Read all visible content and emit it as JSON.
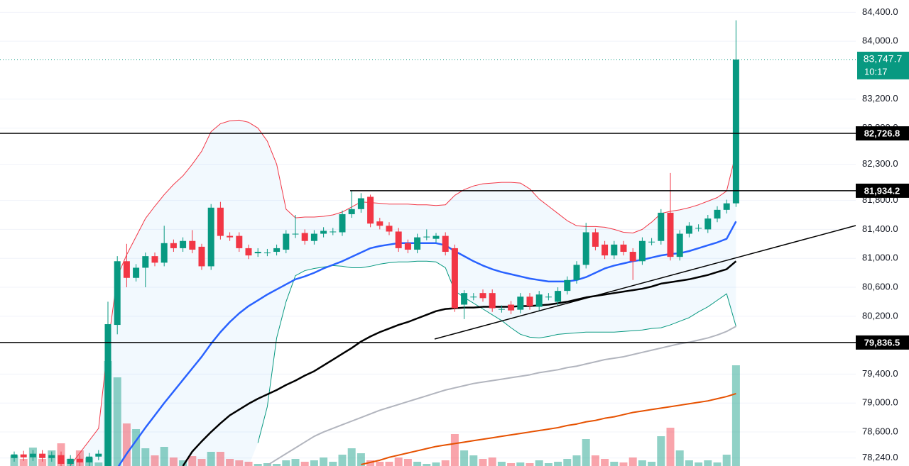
{
  "chart_data": {
    "type": "candlestick",
    "candles": {
      "open": [
        78240,
        78290,
        78250,
        78300,
        78240,
        78280,
        78160,
        78230,
        78180,
        78260,
        78100,
        80080,
        80960,
        80730,
        80870,
        81030,
        80940,
        81210,
        81140,
        81240,
        81160,
        80890,
        81700,
        81310,
        81310,
        81140,
        81070,
        81080,
        81090,
        81120,
        81330,
        81350,
        81240,
        81340,
        81370,
        81360,
        81610,
        81680,
        81850,
        81510,
        81450,
        81370,
        81210,
        81120,
        81300,
        81270,
        81310,
        81140,
        80360,
        80470,
        80520,
        80520,
        80300,
        80360,
        80290,
        80470,
        80330,
        80470,
        80400,
        80550,
        80700,
        80910,
        81360,
        81190,
        81040,
        81190,
        81090,
        80960,
        81230,
        81240,
        81630,
        81020,
        81340,
        81420,
        81400,
        81550,
        81670,
        81760
      ],
      "high": [
        78330,
        78340,
        78350,
        78350,
        78330,
        78330,
        78280,
        78280,
        78310,
        78350,
        80400,
        81030,
        81200,
        80920,
        81080,
        81080,
        81450,
        81260,
        81290,
        81390,
        81200,
        81750,
        81780,
        81360,
        81360,
        81190,
        81140,
        81130,
        81190,
        81390,
        81600,
        81400,
        81390,
        81430,
        81420,
        81660,
        81930,
        81900,
        81880,
        81560,
        81500,
        81420,
        81260,
        81340,
        81400,
        81350,
        81360,
        81190,
        80560,
        80520,
        80570,
        80570,
        80350,
        80410,
        80520,
        80520,
        80550,
        80520,
        80600,
        80750,
        80960,
        81490,
        81410,
        81240,
        81240,
        81240,
        81140,
        81290,
        81280,
        81680,
        82180,
        81390,
        81500,
        81470,
        81600,
        81720,
        81810,
        84290
      ],
      "low": [
        78190,
        78200,
        78200,
        78190,
        78190,
        78110,
        78110,
        78130,
        78130,
        78210,
        78050,
        79950,
        80600,
        80680,
        80600,
        80890,
        80890,
        81090,
        81090,
        81070,
        80840,
        80840,
        81260,
        81240,
        81090,
        80990,
        81020,
        81030,
        81040,
        81070,
        81280,
        81190,
        81190,
        81290,
        81320,
        81310,
        81560,
        81630,
        81430,
        81400,
        81320,
        81090,
        81070,
        81070,
        81250,
        81220,
        81040,
        80260,
        80160,
        80420,
        80400,
        80260,
        80250,
        80230,
        80240,
        80290,
        80280,
        80420,
        80350,
        80500,
        80650,
        80860,
        81110,
        80990,
        80990,
        81040,
        80700,
        80910,
        81180,
        81190,
        80970,
        80970,
        81290,
        81370,
        81350,
        81500,
        81620,
        81710
      ],
      "close": [
        78290,
        78250,
        78300,
        78240,
        78280,
        78160,
        78230,
        78180,
        78260,
        78300,
        80090,
        80960,
        80730,
        80870,
        81030,
        80940,
        81210,
        81140,
        81240,
        81120,
        80890,
        81700,
        81310,
        81290,
        81140,
        81040,
        81090,
        81080,
        81140,
        81340,
        81340,
        81240,
        81340,
        81380,
        81370,
        81610,
        81680,
        81830,
        81480,
        81450,
        81370,
        81140,
        81120,
        81290,
        81300,
        81310,
        81090,
        80310,
        80520,
        80470,
        80450,
        80310,
        80300,
        80280,
        80470,
        80340,
        80500,
        80470,
        80550,
        80700,
        80910,
        81360,
        81160,
        81040,
        81190,
        81090,
        80960,
        81240,
        81230,
        81630,
        81020,
        81340,
        81450,
        81420,
        81550,
        81670,
        81760,
        83747.7
      ]
    },
    "up_color": "#089981",
    "down_color": "#f23645",
    "volume": [
      15,
      10,
      26,
      10,
      22,
      32,
      10,
      22,
      12,
      5,
      148,
      125,
      60,
      52,
      25,
      15,
      27,
      12,
      8,
      14,
      10,
      20,
      20,
      10,
      8,
      6,
      3,
      4,
      3,
      8,
      10,
      6,
      8,
      12,
      6,
      16,
      25,
      18,
      8,
      6,
      6,
      12,
      10,
      6,
      3,
      5,
      8,
      45,
      22,
      15,
      10,
      12,
      6,
      4,
      5,
      4,
      8,
      4,
      6,
      10,
      15,
      38,
      15,
      10,
      6,
      5,
      12,
      8,
      6,
      42,
      54,
      22,
      8,
      5,
      8,
      5,
      16,
      142
    ],
    "volume_lim": [
      0,
      657
    ],
    "band_fill": "rgba(33,150,243,0.06)",
    "series": [
      {
        "color": "#f23645",
        "width": 1,
        "values": [
          null,
          null,
          null,
          null,
          null,
          null,
          78140,
          78310,
          78480,
          78650,
          79800,
          80750,
          81050,
          81300,
          81550,
          81720,
          81880,
          82020,
          82140,
          82300,
          82480,
          82750,
          82860,
          82900,
          82910,
          82880,
          82800,
          82620,
          82300,
          81680,
          81560,
          81570,
          81570,
          81580,
          81600,
          81640,
          81710,
          81780,
          81770,
          81760,
          81750,
          81750,
          81750,
          81740,
          81740,
          81730,
          81740,
          81870,
          81950,
          82000,
          82030,
          82040,
          82050,
          82050,
          82040,
          81960,
          81820,
          81720,
          81620,
          81520,
          81450,
          81440,
          81440,
          81430,
          81400,
          81360,
          81350,
          81400,
          81500,
          81620,
          81650,
          81670,
          81700,
          81740,
          81790,
          81840,
          81930,
          82460
        ]
      },
      {
        "color": "#089981",
        "width": 1,
        "values": [
          null,
          null,
          null,
          null,
          null,
          null,
          null,
          null,
          null,
          null,
          null,
          null,
          null,
          null,
          null,
          null,
          null,
          null,
          null,
          null,
          null,
          null,
          null,
          null,
          null,
          null,
          78450,
          78950,
          79900,
          80400,
          80760,
          80830,
          80860,
          80880,
          80900,
          80890,
          80870,
          80870,
          80890,
          80920,
          80940,
          80950,
          80950,
          80960,
          80960,
          80950,
          80870,
          80550,
          80460,
          80380,
          80300,
          80220,
          80140,
          80040,
          79950,
          79910,
          79900,
          79920,
          79950,
          79960,
          79970,
          79980,
          79980,
          79980,
          79980,
          79990,
          80000,
          80010,
          80030,
          80040,
          80080,
          80130,
          80180,
          80260,
          80330,
          80420,
          80510,
          80060
        ]
      },
      {
        "color": "#b2b5be",
        "width": 2,
        "values": [
          null,
          null,
          null,
          null,
          null,
          null,
          null,
          null,
          null,
          null,
          null,
          null,
          null,
          null,
          null,
          null,
          null,
          null,
          null,
          null,
          null,
          null,
          null,
          null,
          null,
          null,
          null,
          78140,
          78220,
          78300,
          78380,
          78460,
          78540,
          78600,
          78650,
          78700,
          78750,
          78800,
          78850,
          78900,
          78940,
          78980,
          79020,
          79060,
          79100,
          79140,
          79180,
          79210,
          79240,
          79270,
          79290,
          79310,
          79330,
          79350,
          79370,
          79390,
          79420,
          79440,
          79460,
          79490,
          79510,
          79540,
          79570,
          79600,
          79620,
          79640,
          79670,
          79700,
          79730,
          79760,
          79790,
          79820,
          79840,
          79870,
          79900,
          79940,
          79990,
          80060
        ]
      },
      {
        "color": "#e65100",
        "width": 2,
        "values": [
          null,
          null,
          null,
          null,
          null,
          null,
          null,
          null,
          null,
          null,
          null,
          null,
          null,
          null,
          null,
          null,
          null,
          null,
          null,
          null,
          null,
          null,
          null,
          null,
          null,
          null,
          null,
          null,
          null,
          null,
          null,
          null,
          null,
          null,
          null,
          null,
          null,
          78150,
          78180,
          78210,
          78250,
          78280,
          78310,
          78340,
          78370,
          78400,
          78420,
          78440,
          78460,
          78480,
          78500,
          78520,
          78540,
          78560,
          78580,
          78600,
          78620,
          78640,
          78660,
          78690,
          78710,
          78740,
          78760,
          78790,
          78810,
          78840,
          78870,
          78890,
          78910,
          78930,
          78950,
          78970,
          78990,
          79010,
          79030,
          79060,
          79090,
          79130
        ]
      },
      {
        "color": "#000000",
        "width": 2.5,
        "values": [
          null,
          null,
          null,
          null,
          null,
          null,
          null,
          null,
          null,
          null,
          null,
          null,
          null,
          null,
          null,
          null,
          null,
          null,
          78130,
          78330,
          78470,
          78600,
          78720,
          78830,
          78910,
          78990,
          79060,
          79120,
          79180,
          79250,
          79310,
          79380,
          79440,
          79520,
          79600,
          79680,
          79760,
          79850,
          79920,
          79980,
          80030,
          80080,
          80120,
          80170,
          80220,
          80270,
          80300,
          80310,
          80320,
          80320,
          80330,
          80330,
          80330,
          80330,
          80340,
          80340,
          80350,
          80360,
          80380,
          80400,
          80430,
          80460,
          80480,
          80500,
          80520,
          80540,
          80560,
          80580,
          80610,
          80650,
          80670,
          80690,
          80710,
          80740,
          80770,
          80810,
          80850,
          80960
        ]
      },
      {
        "color": "#2962ff",
        "width": 2.5,
        "values": [
          null,
          null,
          null,
          null,
          null,
          null,
          null,
          null,
          null,
          null,
          null,
          78100,
          78300,
          78480,
          78660,
          78830,
          79000,
          79160,
          79320,
          79480,
          79640,
          79820,
          79980,
          80120,
          80240,
          80340,
          80420,
          80500,
          80570,
          80640,
          80710,
          80750,
          80800,
          80860,
          80910,
          80960,
          81020,
          81080,
          81140,
          81170,
          81190,
          81210,
          81210,
          81210,
          81210,
          81210,
          81180,
          81100,
          81030,
          80960,
          80900,
          80850,
          80810,
          80780,
          80750,
          80720,
          80700,
          80680,
          80680,
          80680,
          80700,
          80740,
          80800,
          80860,
          80900,
          80930,
          80960,
          80980,
          81010,
          81040,
          81060,
          81070,
          81100,
          81140,
          81180,
          81220,
          81270,
          81510
        ]
      }
    ],
    "levels": [
      {
        "value": 82726.8,
        "label": "82,726.8"
      },
      {
        "value": 81934.2,
        "label": "81,934.2"
      },
      {
        "value": 79836.5,
        "label": "79,836.5"
      }
    ],
    "current_price": {
      "value": 83747.7,
      "label": "83,747.7",
      "countdown": "10:17"
    },
    "ylim": [
      78130,
      84570
    ],
    "yticks": [
      {
        "value": 84400,
        "label": "84,400.0"
      },
      {
        "value": 84000,
        "label": "84,000.0"
      },
      {
        "value": 83200,
        "label": "83,200.0"
      },
      {
        "value": 82800,
        "label": "82,800.0"
      },
      {
        "value": 82300,
        "label": "82,300.0"
      },
      {
        "value": 81800,
        "label": "81,800.0"
      },
      {
        "value": 81400,
        "label": "81,400.0"
      },
      {
        "value": 81000,
        "label": "81,000.0"
      },
      {
        "value": 80600,
        "label": "80,600.0"
      },
      {
        "value": 80200,
        "label": "80,200.0"
      },
      {
        "value": 79400,
        "label": "79,400.0"
      },
      {
        "value": 79000,
        "label": "79,000.0"
      },
      {
        "value": 78600,
        "label": "78,600.0"
      },
      {
        "value": 78240,
        "label": "78,240.0"
      }
    ],
    "grid": true
  }
}
